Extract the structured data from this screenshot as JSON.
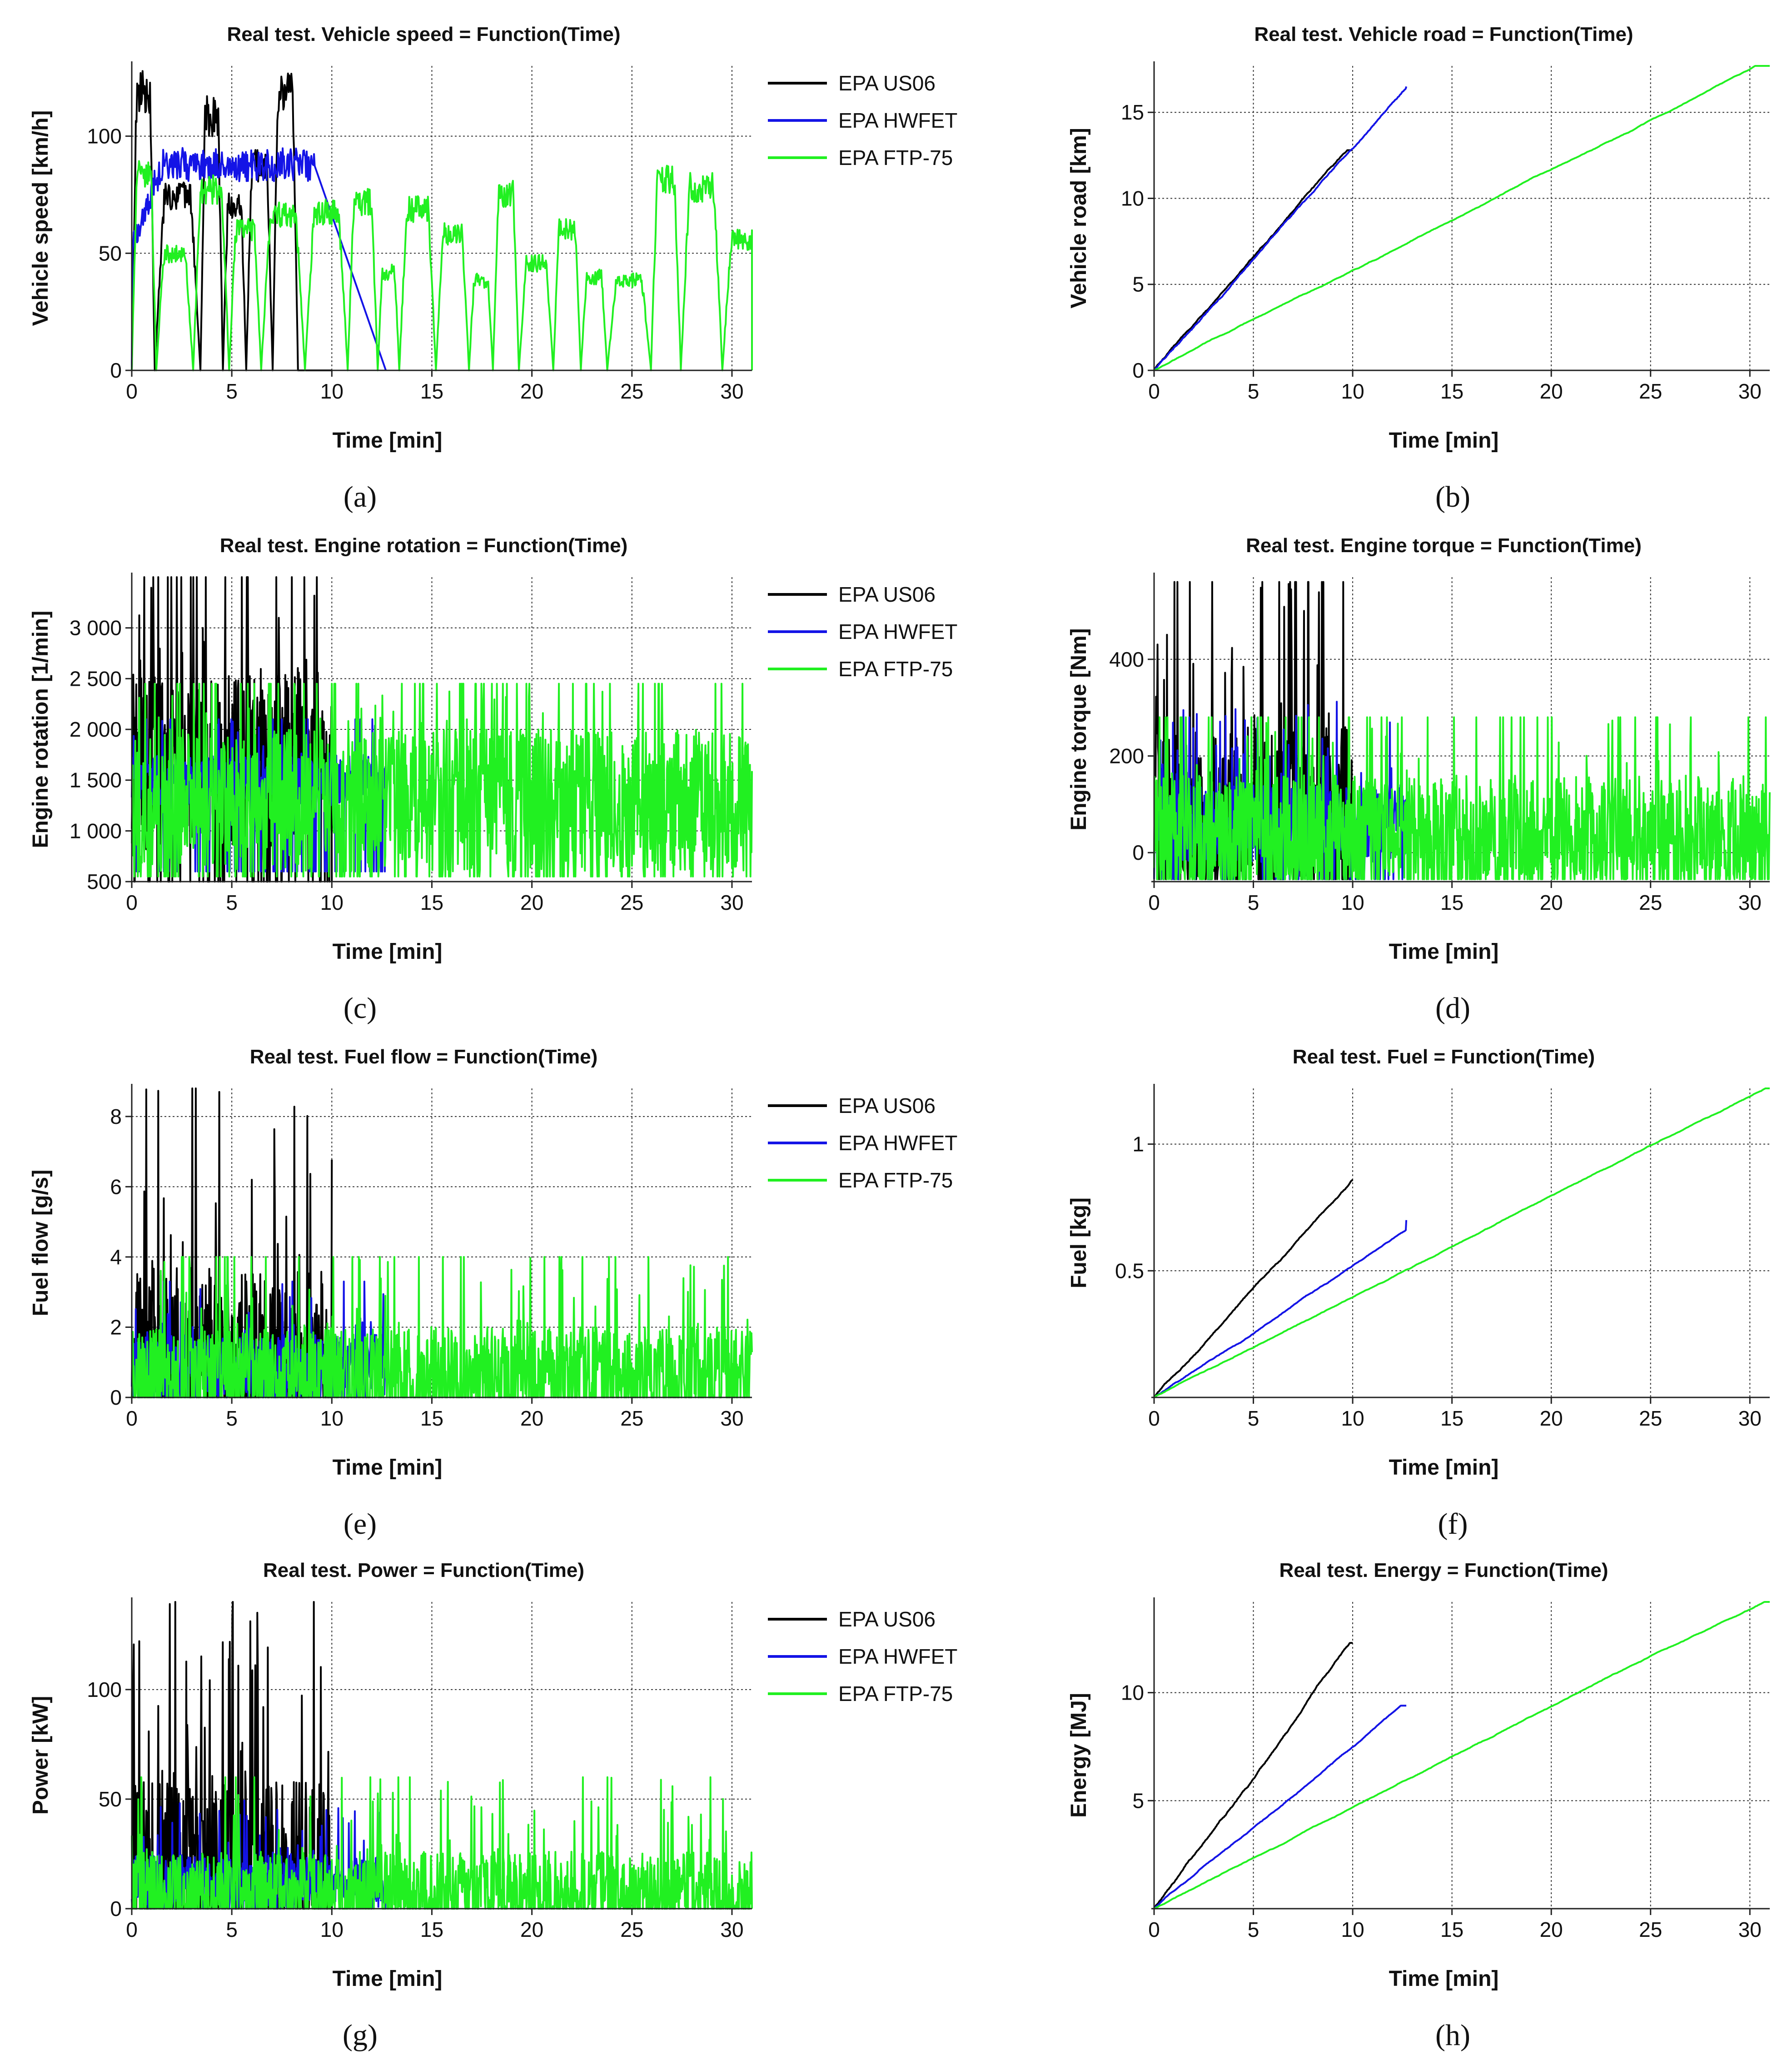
{
  "legend": [
    {
      "name": "EPA US06",
      "color": "#000000"
    },
    {
      "name": "EPA HWFET",
      "color": "#1414e6"
    },
    {
      "name": "EPA FTP-75",
      "color": "#21f021"
    }
  ],
  "chart_data": [
    {
      "id": "a",
      "caption": "a",
      "type": "line",
      "title": "Real test. Vehicle speed = Function(Time)",
      "xlabel": "Time [min]",
      "ylabel": "Vehicle speed [km/h]",
      "xlim": [
        0,
        31
      ],
      "ylim": [
        0,
        130
      ],
      "xticks": [
        0,
        5,
        10,
        15,
        20,
        25,
        30
      ],
      "xtick_labels": [
        "0",
        "5",
        "10",
        "15",
        "20",
        "25",
        "30"
      ],
      "yticks": [
        0,
        50,
        100
      ],
      "ytick_labels": [
        "0",
        "50",
        "100"
      ],
      "legend": true,
      "signal": "speed",
      "series": [
        {
          "name": "EPA US06",
          "color": "#000000",
          "end": 10.0,
          "stop": 5,
          "max": 128
        },
        {
          "name": "EPA HWFET",
          "color": "#1414e6",
          "end": 12.7,
          "stop": 0,
          "max": 95
        },
        {
          "name": "EPA FTP-75",
          "color": "#21f021",
          "end": 31.0,
          "stop": 18,
          "max": 90
        }
      ]
    },
    {
      "id": "b",
      "caption": "b",
      "type": "line",
      "title": "Real test. Vehicle road = Function(Time)",
      "xlabel": "Time [min]",
      "ylabel": "Vehicle road [km]",
      "xlim": [
        0,
        31
      ],
      "ylim": [
        0,
        17.7
      ],
      "xticks": [
        0,
        5,
        10,
        15,
        20,
        25,
        30
      ],
      "xtick_labels": [
        "0",
        "5",
        "10",
        "15",
        "20",
        "25",
        "30"
      ],
      "yticks": [
        0,
        5,
        10,
        15
      ],
      "ytick_labels": [
        "0",
        "5",
        "10",
        "15"
      ],
      "legend": false,
      "signal": "cum",
      "series": [
        {
          "name": "EPA US06",
          "color": "#000000",
          "end": 10.0,
          "final": 12.8
        },
        {
          "name": "EPA HWFET",
          "color": "#1414e6",
          "end": 12.7,
          "final": 16.5
        },
        {
          "name": "EPA FTP-75",
          "color": "#21f021",
          "end": 31.0,
          "final": 17.7
        }
      ]
    },
    {
      "id": "c",
      "caption": "c",
      "type": "line",
      "title": "Real test. Engine rotation = Function(Time)",
      "xlabel": "Time [min]",
      "ylabel": "Engine rotation [1/min]",
      "xlim": [
        0,
        31
      ],
      "ylim": [
        500,
        3500
      ],
      "xticks": [
        0,
        5,
        10,
        15,
        20,
        25,
        30
      ],
      "xtick_labels": [
        "0",
        "5",
        "10",
        "15",
        "20",
        "25",
        "30"
      ],
      "yticks": [
        500,
        1000,
        1500,
        2000,
        2500,
        3000
      ],
      "ytick_labels": [
        "500",
        "1 000",
        "1 500",
        "2 000",
        "2 500",
        "3 000"
      ],
      "legend": true,
      "signal": "rpm",
      "series": [
        {
          "name": "EPA US06",
          "color": "#000000",
          "end": 10.0,
          "base": 1700,
          "amp": 900,
          "min": 500,
          "max": 3500
        },
        {
          "name": "EPA HWFET",
          "color": "#1414e6",
          "end": 12.7,
          "base": 1500,
          "amp": 250,
          "min": 600,
          "max": 2100
        },
        {
          "name": "EPA FTP-75",
          "color": "#21f021",
          "end": 31.0,
          "base": 1300,
          "amp": 700,
          "min": 550,
          "max": 2450
        }
      ]
    },
    {
      "id": "d",
      "caption": "d",
      "type": "line",
      "title": "Real test. Engine torque = Function(Time)",
      "xlabel": "Time [min]",
      "ylabel": "Engine torque [Nm]",
      "xlim": [
        0,
        31
      ],
      "ylim": [
        -60,
        570
      ],
      "xticks": [
        0,
        5,
        10,
        15,
        20,
        25,
        30
      ],
      "xtick_labels": [
        "0",
        "5",
        "10",
        "15",
        "20",
        "25",
        "30"
      ],
      "yticks": [
        0,
        200,
        400
      ],
      "ytick_labels": [
        "0",
        "200",
        "400"
      ],
      "legend": false,
      "signal": "spiky",
      "series": [
        {
          "name": "EPA US06",
          "color": "#000000",
          "end": 10.0,
          "base": 80,
          "amp": 180,
          "min": -55,
          "max": 560
        },
        {
          "name": "EPA HWFET",
          "color": "#1414e6",
          "end": 12.7,
          "base": 60,
          "amp": 80,
          "min": -55,
          "max": 370
        },
        {
          "name": "EPA FTP-75",
          "color": "#21f021",
          "end": 31.0,
          "base": 40,
          "amp": 120,
          "min": -55,
          "max": 280
        }
      ]
    },
    {
      "id": "e",
      "caption": "e",
      "type": "line",
      "title": "Real test. Fuel flow = Function(Time)",
      "xlabel": "Time [min]",
      "ylabel": "Fuel flow [g/s]",
      "xlim": [
        0,
        31
      ],
      "ylim": [
        0,
        8.8
      ],
      "xticks": [
        0,
        5,
        10,
        15,
        20,
        25,
        30
      ],
      "xtick_labels": [
        "0",
        "5",
        "10",
        "15",
        "20",
        "25",
        "30"
      ],
      "yticks": [
        0,
        2,
        4,
        6,
        8
      ],
      "ytick_labels": [
        "0",
        "2",
        "4",
        "6",
        "8"
      ],
      "legend": true,
      "signal": "spiky",
      "series": [
        {
          "name": "EPA US06",
          "color": "#000000",
          "end": 10.0,
          "base": 1.2,
          "amp": 2.5,
          "min": 0,
          "max": 8.8
        },
        {
          "name": "EPA HWFET",
          "color": "#1414e6",
          "end": 12.7,
          "base": 0.9,
          "amp": 0.9,
          "min": 0,
          "max": 3.3
        },
        {
          "name": "EPA FTP-75",
          "color": "#21f021",
          "end": 31.0,
          "base": 0.6,
          "amp": 1.4,
          "min": 0,
          "max": 4.0
        }
      ]
    },
    {
      "id": "f",
      "caption": "f",
      "type": "line",
      "title": "Real test. Fuel = Function(Time)",
      "xlabel": "Time [min]",
      "ylabel": "Fuel [kg]",
      "xlim": [
        0,
        31
      ],
      "ylim": [
        0,
        1.22
      ],
      "xticks": [
        0,
        5,
        10,
        15,
        20,
        25,
        30
      ],
      "xtick_labels": [
        "0",
        "5",
        "10",
        "15",
        "20",
        "25",
        "30"
      ],
      "yticks": [
        0.5,
        1
      ],
      "ytick_labels": [
        "0.5",
        "1"
      ],
      "legend": false,
      "signal": "cum",
      "series": [
        {
          "name": "EPA US06",
          "color": "#000000",
          "end": 10.0,
          "final": 0.86
        },
        {
          "name": "EPA HWFET",
          "color": "#1414e6",
          "end": 12.7,
          "final": 0.7
        },
        {
          "name": "EPA FTP-75",
          "color": "#21f021",
          "end": 31.0,
          "final": 1.22
        }
      ]
    },
    {
      "id": "g",
      "caption": "g",
      "type": "line",
      "title": "Real test. Power = Function(Time)",
      "xlabel": "Time [min]",
      "ylabel": "Power [kW]",
      "xlim": [
        0,
        31
      ],
      "ylim": [
        0,
        140
      ],
      "xticks": [
        0,
        5,
        10,
        15,
        20,
        25,
        30
      ],
      "xtick_labels": [
        "0",
        "5",
        "10",
        "15",
        "20",
        "25",
        "30"
      ],
      "yticks": [
        0,
        50,
        100
      ],
      "ytick_labels": [
        "0",
        "50",
        "100"
      ],
      "legend": true,
      "signal": "spiky",
      "series": [
        {
          "name": "EPA US06",
          "color": "#000000",
          "end": 10.0,
          "base": 18,
          "amp": 40,
          "min": 0,
          "max": 140
        },
        {
          "name": "EPA HWFET",
          "color": "#1414e6",
          "end": 12.7,
          "base": 12,
          "amp": 12,
          "min": 0,
          "max": 57
        },
        {
          "name": "EPA FTP-75",
          "color": "#21f021",
          "end": 31.0,
          "base": 8,
          "amp": 18,
          "min": 0,
          "max": 60
        }
      ]
    },
    {
      "id": "h",
      "caption": "h",
      "type": "line",
      "title": "Real test. Energy = Function(Time)",
      "xlabel": "Time [min]",
      "ylabel": "Energy [MJ]",
      "xlim": [
        0,
        31
      ],
      "ylim": [
        0,
        14.2
      ],
      "xticks": [
        0,
        5,
        10,
        15,
        20,
        25,
        30
      ],
      "xtick_labels": [
        "0",
        "5",
        "10",
        "15",
        "20",
        "25",
        "30"
      ],
      "yticks": [
        5,
        10
      ],
      "ytick_labels": [
        "5",
        "10"
      ],
      "legend": false,
      "signal": "cum",
      "series": [
        {
          "name": "EPA US06",
          "color": "#000000",
          "end": 10.0,
          "final": 12.3
        },
        {
          "name": "EPA HWFET",
          "color": "#1414e6",
          "end": 12.7,
          "final": 9.4
        },
        {
          "name": "EPA FTP-75",
          "color": "#21f021",
          "end": 31.0,
          "final": 14.2
        }
      ]
    }
  ]
}
